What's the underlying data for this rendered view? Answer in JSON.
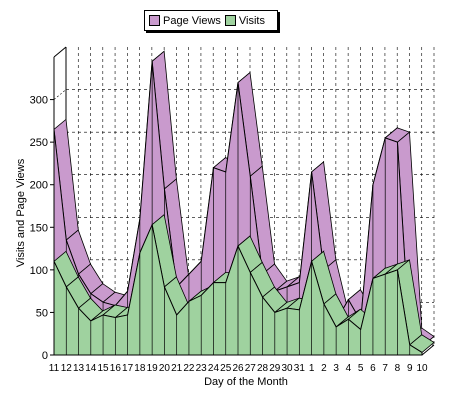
{
  "legend": {
    "items": [
      "Page Views",
      "Visits"
    ]
  },
  "colors": {
    "page_views_fill": "#c99acd",
    "visits_fill": "#9fd29f",
    "outline": "#000000"
  },
  "chart_data": {
    "type": "area",
    "title": "",
    "xlabel": "Day of the Month",
    "ylabel": "Visits and Page Views",
    "ylim": [
      0,
      350
    ],
    "yticks": [
      0,
      50,
      100,
      150,
      200,
      250,
      300
    ],
    "grid": true,
    "legend_position": "top",
    "categories": [
      "11",
      "12",
      "13",
      "14",
      "15",
      "16",
      "17",
      "18",
      "19",
      "20",
      "21",
      "22",
      "23",
      "24",
      "25",
      "26",
      "27",
      "28",
      "29",
      "30",
      "31",
      "1",
      "2",
      "3",
      "4",
      "5",
      "6",
      "7",
      "8",
      "9",
      "10"
    ],
    "series": [
      {
        "name": "Page Views",
        "values": [
          265,
          135,
          95,
          72,
          62,
          58,
          75,
          160,
          345,
          195,
          80,
          95,
          110,
          220,
          215,
          320,
          210,
          95,
          75,
          80,
          85,
          215,
          100,
          40,
          65,
          40,
          200,
          255,
          250,
          20,
          10
        ]
      },
      {
        "name": "Visits",
        "values": [
          110,
          80,
          55,
          40,
          47,
          44,
          47,
          120,
          153,
          80,
          47,
          63,
          70,
          85,
          85,
          128,
          97,
          68,
          50,
          55,
          53,
          110,
          60,
          33,
          42,
          30,
          90,
          95,
          100,
          12,
          3
        ]
      }
    ]
  }
}
